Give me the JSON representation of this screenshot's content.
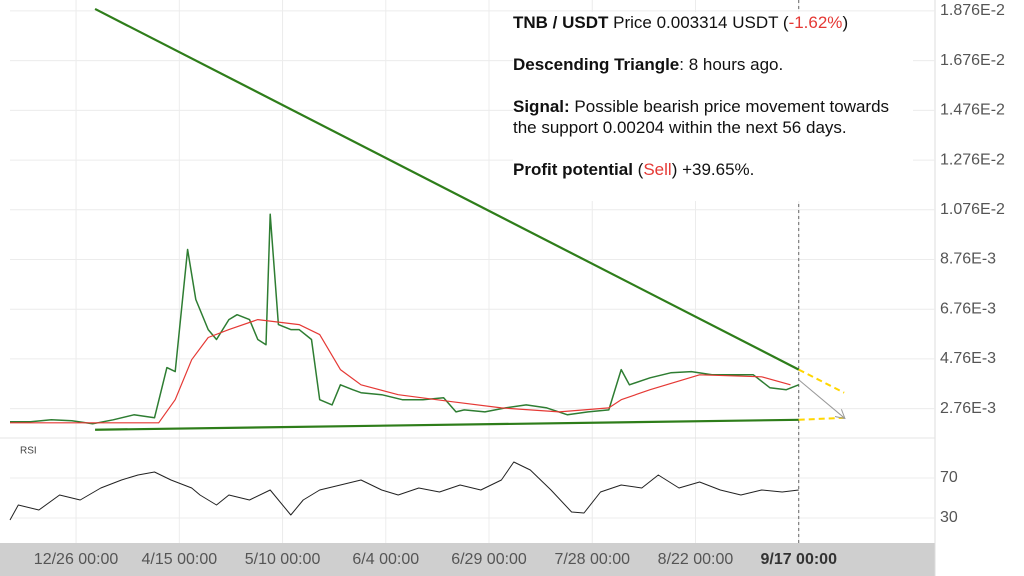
{
  "chart_data": {
    "type": "line",
    "xlim": [
      0,
      224
    ],
    "xticks": [
      {
        "value": 16,
        "label": "12/26 00:00"
      },
      {
        "value": 41,
        "label": "4/15 00:00"
      },
      {
        "value": 66,
        "label": "5/10 00:00"
      },
      {
        "value": 91,
        "label": "6/4 00:00"
      },
      {
        "value": 116,
        "label": "6/29 00:00"
      },
      {
        "value": 141,
        "label": "7/28 00:00"
      },
      {
        "value": 166,
        "label": "8/22 00:00"
      },
      {
        "value": 191,
        "label": "9/17 00:00",
        "bold": true
      }
    ],
    "ylim": [
      0.0019,
      0.0192
    ],
    "yticks": [
      {
        "value": 0.01876,
        "label": "1.876E-2"
      },
      {
        "value": 0.01676,
        "label": "1.676E-2"
      },
      {
        "value": 0.01476,
        "label": "1.476E-2"
      },
      {
        "value": 0.01276,
        "label": "1.276E-2"
      },
      {
        "value": 0.01076,
        "label": "1.076E-2"
      },
      {
        "value": 0.00876,
        "label": "8.76E-3"
      },
      {
        "value": 0.00676,
        "label": "6.76E-3"
      },
      {
        "value": 0.00476,
        "label": "4.76E-3"
      },
      {
        "value": 0.00276,
        "label": "2.76E-3"
      }
    ],
    "grid": true,
    "current_x": 191,
    "series": [
      {
        "color": "#2e7d32",
        "x": [
          0,
          5,
          10,
          15,
          20,
          25,
          30,
          35,
          38,
          40,
          43,
          45,
          48,
          50,
          53,
          55,
          58,
          60,
          62,
          63,
          65,
          68,
          70,
          73,
          75,
          78,
          80,
          83,
          85,
          90,
          95,
          100,
          105,
          108,
          110,
          115,
          120,
          125,
          130,
          135,
          140,
          145,
          148,
          150,
          155,
          160,
          165,
          170,
          175,
          180,
          184,
          188,
          191
        ],
        "values": [
          0.00223,
          0.00223,
          0.00231,
          0.00227,
          0.00215,
          0.00231,
          0.00251,
          0.00239,
          0.00441,
          0.00425,
          0.00916,
          0.00715,
          0.00594,
          0.00554,
          0.00634,
          0.00654,
          0.00634,
          0.00554,
          0.00533,
          0.01058,
          0.00614,
          0.00594,
          0.00594,
          0.00554,
          0.00312,
          0.00291,
          0.00372,
          0.00352,
          0.0034,
          0.00332,
          0.00312,
          0.00312,
          0.0032,
          0.00263,
          0.00271,
          0.00263,
          0.00279,
          0.00291,
          0.00279,
          0.00251,
          0.00263,
          0.00271,
          0.00433,
          0.00372,
          0.004,
          0.0042,
          0.00425,
          0.00412,
          0.00412,
          0.00412,
          0.0036,
          0.00352,
          0.00372
        ]
      },
      {
        "color": "#e53935",
        "x": [
          0,
          36,
          40,
          44,
          48,
          53,
          60,
          70,
          75,
          80,
          85,
          94,
          107,
          119,
          133,
          145,
          148,
          155,
          167,
          182,
          189
        ],
        "values": [
          0.00219,
          0.00219,
          0.00312,
          0.00473,
          0.00562,
          0.00594,
          0.00634,
          0.00614,
          0.00574,
          0.00433,
          0.00372,
          0.00332,
          0.00304,
          0.00279,
          0.00263,
          0.00279,
          0.00312,
          0.00352,
          0.00412,
          0.00404,
          0.00372
        ]
      }
    ],
    "trendlines": [
      {
        "x": [
          20.6,
          191
        ],
        "values": [
          0.01884,
          0.00433
        ],
        "color": "#2e7d1a",
        "dashed": false
      },
      {
        "x": [
          20.6,
          191
        ],
        "values": [
          0.00191,
          0.00231
        ],
        "color": "#2e7d1a",
        "dashed": false
      },
      {
        "x": [
          191,
          202
        ],
        "values": [
          0.00433,
          0.0034
        ],
        "color": "#ffd600",
        "dashed": true
      },
      {
        "x": [
          191,
          202
        ],
        "values": [
          0.00231,
          0.00239
        ],
        "color": "#ffd600",
        "dashed": true
      },
      {
        "x": [
          191,
          202
        ],
        "values": [
          0.00392,
          0.00239
        ],
        "color": "#999999",
        "dashed": false,
        "arrow": true
      }
    ],
    "rsi": {
      "label": "RSI",
      "color": "#222222",
      "ylim": [
        8,
        103
      ],
      "yticks": [
        30,
        70
      ],
      "x": [
        0,
        2,
        7,
        12,
        17,
        22,
        27,
        31,
        35,
        39,
        44,
        46,
        50,
        53,
        58,
        63,
        68,
        71,
        75,
        80,
        85,
        90,
        94,
        99,
        104,
        109,
        114,
        119,
        122,
        126,
        131,
        136,
        139,
        143,
        148,
        153,
        157,
        162,
        167,
        172,
        177,
        182,
        187,
        191
      ],
      "values": [
        28,
        43,
        38,
        53,
        48,
        60,
        68,
        73,
        76,
        68,
        60,
        53,
        43,
        53,
        48,
        58,
        33,
        48,
        58,
        63,
        68,
        58,
        53,
        60,
        56,
        63,
        58,
        68,
        86,
        78,
        58,
        36,
        35,
        56,
        63,
        60,
        73,
        60,
        66,
        58,
        53,
        58,
        56,
        58
      ]
    },
    "info": [
      [
        {
          "text": "TNB / USDT",
          "bold": true
        },
        {
          "text": " Price 0.003314 USDT ("
        },
        {
          "text": "-1.62%",
          "color": "#e53935"
        },
        {
          "text": ")"
        }
      ],
      [
        {
          "text": "Descending Triangle",
          "bold": true
        },
        {
          "text": ": 8 hours ago."
        }
      ],
      [
        {
          "text": "Signal:",
          "bold": true
        },
        {
          "text": " Possible bearish price movement towards the support 0.00204 within the next 56 days."
        }
      ],
      [
        {
          "text": "Profit potential",
          "bold": true
        },
        {
          "text": " ("
        },
        {
          "text": "Sell",
          "color": "#e53935"
        },
        {
          "text": ") +39.65%."
        }
      ]
    ]
  }
}
